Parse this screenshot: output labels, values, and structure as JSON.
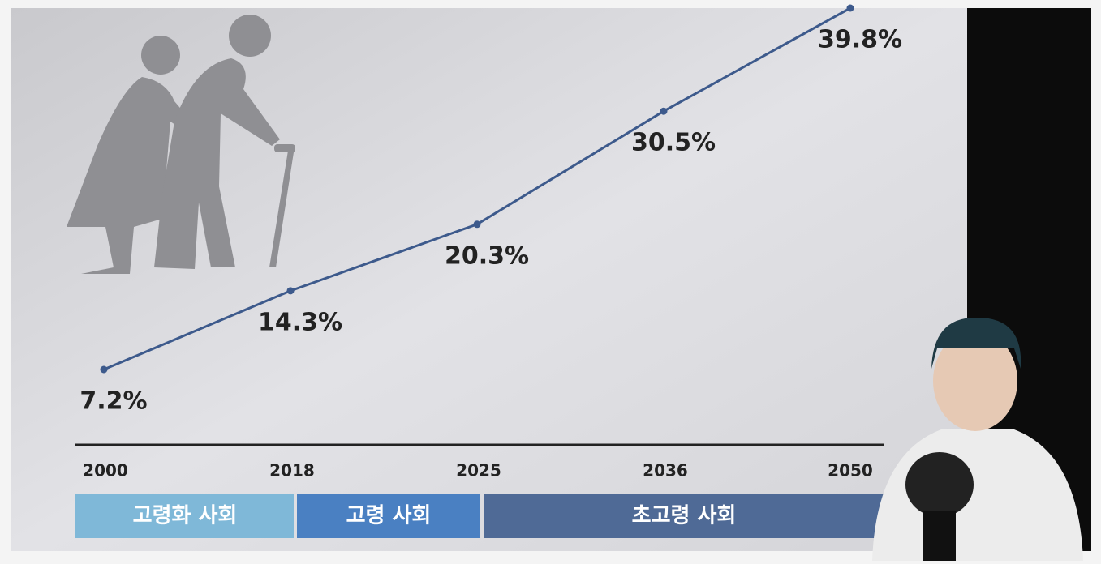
{
  "chart_data": {
    "type": "line",
    "categories": [
      "2000",
      "2018",
      "2025",
      "2036",
      "2050"
    ],
    "values": [
      7.2,
      14.3,
      20.3,
      30.5,
      39.8
    ],
    "value_labels": [
      "7.2%",
      "14.3%",
      "20.3%",
      "30.5%",
      "39.8%"
    ],
    "color": "#3d5a8c",
    "stages": [
      "고령화 사회",
      "고령 사회",
      "초고령 사회"
    ]
  }
}
